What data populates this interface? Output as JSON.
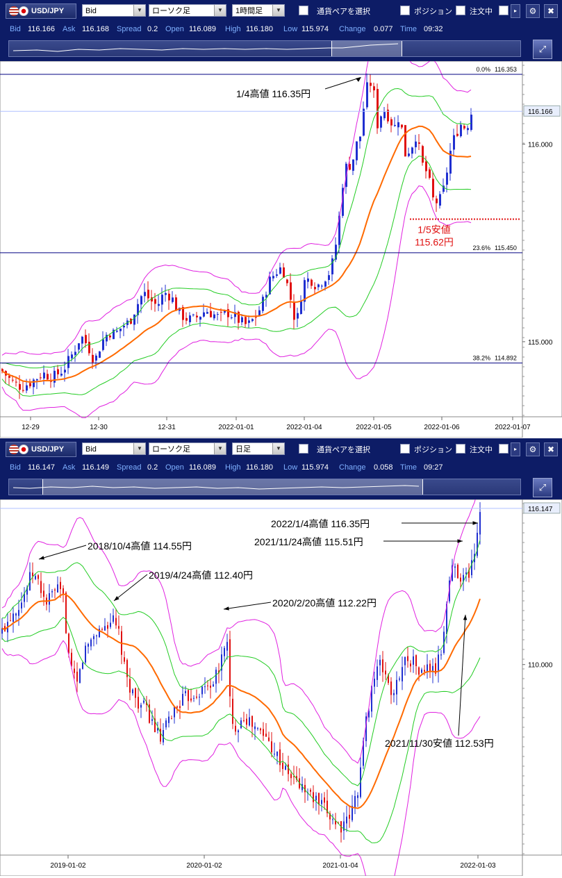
{
  "panels": [
    {
      "symbol": "USD/JPY",
      "price_type": "Bid",
      "chart_type": "ローソク足",
      "timeframe": "1時間足",
      "pair_select_label": "通貨ペアを選択",
      "position_label": "ポジション",
      "order_label": "注文中",
      "info": {
        "bid_label": "Bid",
        "bid": "116.166",
        "ask_label": "Ask",
        "ask": "116.168",
        "spread_label": "Spread",
        "spread": "0.2",
        "open_label": "Open",
        "open": "116.089",
        "high_label": "High",
        "high": "116.180",
        "low_label": "Low",
        "low": "115.974",
        "change_label": "Change",
        "change": "0.077",
        "time_label": "Time",
        "time": "09:32"
      }
    },
    {
      "symbol": "USD/JPY",
      "price_type": "Bid",
      "chart_type": "ローソク足",
      "timeframe": "日足",
      "pair_select_label": "通貨ペアを選択",
      "position_label": "ポジション",
      "order_label": "注文中",
      "info": {
        "bid_label": "Bid",
        "bid": "116.147",
        "ask_label": "Ask",
        "ask": "116.149",
        "spread_label": "Spread",
        "spread": "0.2",
        "open_label": "Open",
        "open": "116.089",
        "high_label": "High",
        "high": "116.180",
        "low_label": "Low",
        "low": "115.974",
        "change_label": "Change",
        "change": "0.058",
        "time_label": "Time",
        "time": "09:27"
      }
    }
  ],
  "colors": {
    "up": "#1f2fd0",
    "down": "#e01010",
    "ma_mid": "#ff6a00",
    "band_inner": "#22cc22",
    "band_outer": "#e020e0",
    "fib": "#000080",
    "note_red": "#e01010"
  },
  "chart_data": [
    {
      "type": "candlestick",
      "timeframe": "1時間足",
      "x_ticks": [
        "12-29",
        "12-30",
        "12-31",
        "2022-01-01",
        "2022-01-04",
        "2022-01-05",
        "2022-01-06",
        "2022-01-07"
      ],
      "y_ticks": [
        "116.000",
        "115.000"
      ],
      "ylim": [
        114.62,
        116.42
      ],
      "current_price": "116.166",
      "fib_levels": [
        {
          "pct": "0.0%",
          "value": "116.353"
        },
        {
          "pct": "23.6%",
          "value": "115.450"
        },
        {
          "pct": "38.2%",
          "value": "114.892"
        }
      ],
      "annotations": [
        {
          "text": "1/4高値 116.35円",
          "price": 116.35
        },
        {
          "text": "1/5安値",
          "text2": "115.62円",
          "price": 115.62
        }
      ],
      "close_path": [
        [
          0,
          114.86
        ],
        [
          15,
          114.8
        ],
        [
          30,
          114.77
        ],
        [
          45,
          114.8
        ],
        [
          60,
          114.84
        ],
        [
          75,
          114.82
        ],
        [
          90,
          114.86
        ],
        [
          105,
          114.95
        ],
        [
          115,
          115.03
        ],
        [
          125,
          114.98
        ],
        [
          135,
          114.9
        ],
        [
          145,
          115.0
        ],
        [
          155,
          115.05
        ],
        [
          165,
          115.04
        ],
        [
          175,
          115.08
        ],
        [
          185,
          115.1
        ],
        [
          195,
          115.18
        ],
        [
          205,
          115.25
        ],
        [
          215,
          115.21
        ],
        [
          225,
          115.18
        ],
        [
          235,
          115.25
        ],
        [
          245,
          115.23
        ],
        [
          255,
          115.15
        ],
        [
          265,
          115.12
        ],
        [
          275,
          115.11
        ],
        [
          285,
          115.13
        ],
        [
          295,
          115.16
        ],
        [
          305,
          115.14
        ],
        [
          315,
          115.12
        ],
        [
          325,
          115.15
        ],
        [
          335,
          115.13
        ],
        [
          345,
          115.1
        ],
        [
          355,
          115.08
        ],
        [
          365,
          115.12
        ],
        [
          375,
          115.18
        ],
        [
          385,
          115.3
        ],
        [
          395,
          115.35
        ],
        [
          405,
          115.38
        ],
        [
          415,
          115.25
        ],
        [
          425,
          115.08
        ],
        [
          435,
          115.3
        ],
        [
          445,
          115.32
        ],
        [
          455,
          115.28
        ],
        [
          465,
          115.32
        ],
        [
          475,
          115.36
        ],
        [
          485,
          115.55
        ],
        [
          490,
          115.75
        ],
        [
          495,
          115.88
        ],
        [
          505,
          115.9
        ],
        [
          512,
          116.0
        ],
        [
          518,
          116.05
        ],
        [
          524,
          116.25
        ],
        [
          530,
          116.32
        ],
        [
          536,
          116.28
        ],
        [
          542,
          116.1
        ],
        [
          550,
          116.18
        ],
        [
          558,
          116.14
        ],
        [
          566,
          116.08
        ],
        [
          574,
          116.15
        ],
        [
          582,
          115.95
        ],
        [
          590,
          115.98
        ],
        [
          598,
          116.05
        ],
        [
          606,
          115.9
        ],
        [
          614,
          115.85
        ],
        [
          622,
          115.72
        ],
        [
          630,
          115.7
        ],
        [
          638,
          115.78
        ],
        [
          646,
          115.95
        ],
        [
          654,
          116.05
        ],
        [
          662,
          116.1
        ],
        [
          670,
          116.08
        ],
        [
          678,
          116.17
        ]
      ]
    },
    {
      "type": "candlestick",
      "timeframe": "日足",
      "x_ticks": [
        "2019-01-02",
        "2020-01-02",
        "2021-01-04",
        "2022-01-03"
      ],
      "y_ticks": [
        "110.000"
      ],
      "ylim": [
        102.5,
        116.5
      ],
      "current_price": "116.147",
      "annotations": [
        {
          "text": "2022/1/4高値 116.35円"
        },
        {
          "text": "2021/11/24高値 115.51円"
        },
        {
          "text": "2018/10/4高値 114.55円"
        },
        {
          "text": "2019/4/24高値 112.40円"
        },
        {
          "text": "2020/2/20高値 112.22円"
        },
        {
          "text": "2021/11/30安値 112.53円"
        }
      ],
      "close_path": [
        [
          0,
          111.2
        ],
        [
          15,
          112.0
        ],
        [
          30,
          112.5
        ],
        [
          45,
          113.6
        ],
        [
          55,
          113.2
        ],
        [
          65,
          112.4
        ],
        [
          80,
          113.0
        ],
        [
          90,
          112.6
        ],
        [
          100,
          109.8
        ],
        [
          110,
          109.2
        ],
        [
          120,
          110.5
        ],
        [
          135,
          111.2
        ],
        [
          150,
          111.5
        ],
        [
          160,
          111.8
        ],
        [
          170,
          111.2
        ],
        [
          180,
          109.5
        ],
        [
          195,
          108.6
        ],
        [
          210,
          108.2
        ],
        [
          220,
          107.6
        ],
        [
          230,
          107.0
        ],
        [
          245,
          108.0
        ],
        [
          260,
          108.6
        ],
        [
          275,
          108.8
        ],
        [
          290,
          109.0
        ],
        [
          305,
          109.3
        ],
        [
          315,
          109.8
        ],
        [
          325,
          111.3
        ],
        [
          332,
          107.5
        ],
        [
          340,
          107.6
        ],
        [
          350,
          108.0
        ],
        [
          365,
          107.5
        ],
        [
          380,
          107.2
        ],
        [
          395,
          106.6
        ],
        [
          410,
          105.8
        ],
        [
          425,
          105.4
        ],
        [
          440,
          105.0
        ],
        [
          455,
          104.6
        ],
        [
          470,
          104.2
        ],
        [
          485,
          103.7
        ],
        [
          495,
          103.6
        ],
        [
          505,
          104.2
        ],
        [
          515,
          105.2
        ],
        [
          525,
          107.6
        ],
        [
          535,
          109.3
        ],
        [
          545,
          110.0
        ],
        [
          555,
          109.6
        ],
        [
          565,
          108.6
        ],
        [
          575,
          109.8
        ],
        [
          585,
          110.3
        ],
        [
          595,
          110.1
        ],
        [
          605,
          109.6
        ],
        [
          615,
          109.9
        ],
        [
          625,
          109.7
        ],
        [
          635,
          110.6
        ],
        [
          645,
          113.2
        ],
        [
          652,
          114.0
        ],
        [
          660,
          113.5
        ],
        [
          668,
          113.4
        ],
        [
          676,
          113.7
        ],
        [
          684,
          114.8
        ],
        [
          690,
          116.1
        ]
      ]
    }
  ]
}
